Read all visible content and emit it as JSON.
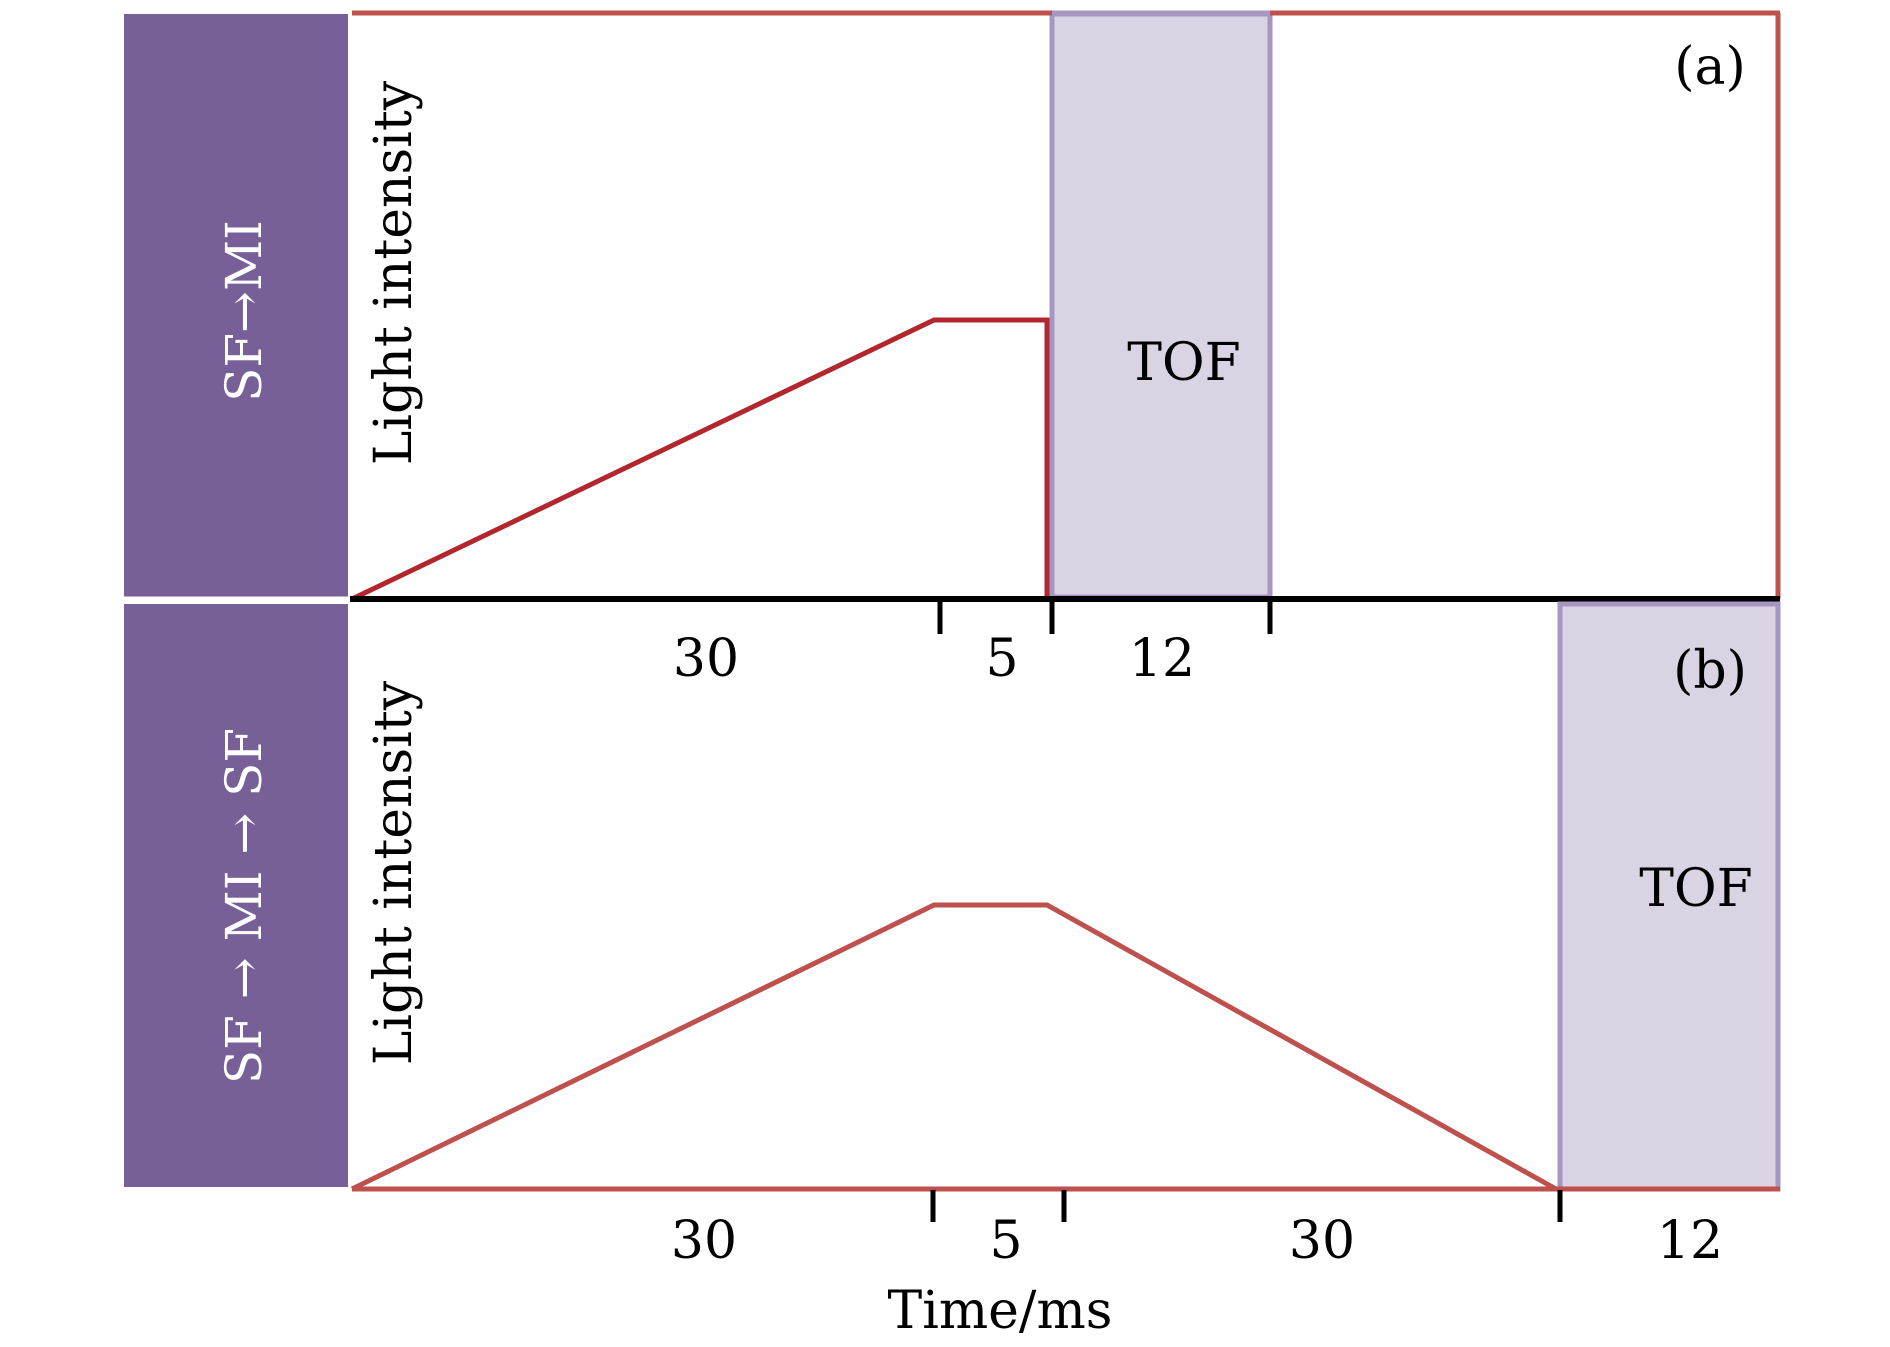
{
  "colors": {
    "sidebar": "#775f97",
    "ramp_a": "#b2272d",
    "ramp_b": "#be514d",
    "frame": "#bf514c",
    "tof_fill": "#dad3e3",
    "tof_border": "#a597c2",
    "axis": "#000000"
  },
  "panel_a": {
    "tag": "(a)",
    "sidebar_label": "SF→MI",
    "ylabel": "Light intensity",
    "tof_label": "TOF",
    "segments": [
      {
        "label": "30",
        "duration_ms": 30
      },
      {
        "label": "5",
        "duration_ms": 5
      },
      {
        "label": "12",
        "duration_ms": 12
      }
    ]
  },
  "panel_b": {
    "tag": "(b)",
    "sidebar_label": "SF → MI → SF",
    "ylabel": "Light intensity",
    "tof_label": "TOF",
    "segments": [
      {
        "label": "30",
        "duration_ms": 30
      },
      {
        "label": "5",
        "duration_ms": 5
      },
      {
        "label": "30",
        "duration_ms": 30
      },
      {
        "label": "12",
        "duration_ms": 12
      }
    ]
  },
  "xlabel": "Time/ms"
}
